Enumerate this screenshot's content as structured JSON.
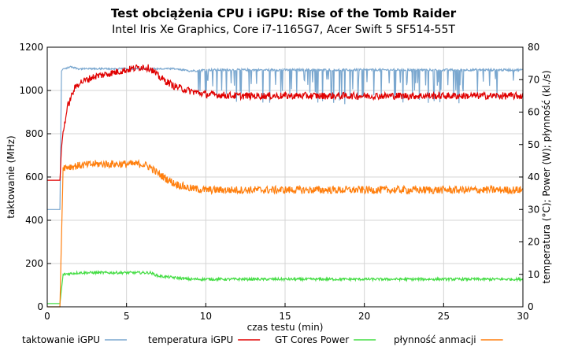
{
  "chart_data": {
    "type": "line",
    "title": "Test obciążenia CPU i iGPU: Rise of the Tomb Raider",
    "subtitle": "Intel Iris Xe Graphics, Core i7-1165G7, Acer Swift 5 SF514-55T",
    "xlabel": "czas testu (min)",
    "ylabel_left": "taktowanie (MHz)",
    "ylabel_right": "temperatura (°C); Power (W); płynność (kl./s)",
    "xlim": [
      0,
      30
    ],
    "ylim_left": [
      0,
      1200
    ],
    "ylim_right": [
      0,
      80
    ],
    "x_ticks": [
      0,
      5,
      10,
      15,
      20,
      25,
      30
    ],
    "y_ticks_left": [
      0,
      200,
      400,
      600,
      800,
      1000,
      1200
    ],
    "y_ticks_right": [
      0,
      10,
      20,
      30,
      40,
      50,
      60,
      70,
      80
    ],
    "grid": true,
    "legend_position": "bottom",
    "series": [
      {
        "name": "taktowanie iGPU",
        "axis": "left",
        "color": "#7aa7cf",
        "x": [
          0,
          0.8,
          0.9,
          1.0,
          1.1,
          1.5,
          2,
          3,
          4,
          5,
          6,
          7,
          8,
          8.5,
          9,
          10,
          12,
          15,
          20,
          25,
          30
        ],
        "y": [
          450,
          450,
          1090,
          1100,
          1100,
          1110,
          1100,
          1100,
          1100,
          1100,
          1100,
          1100,
          1100,
          1095,
          1090,
          1095,
          1095,
          1095,
          1095,
          1095,
          1095
        ]
      },
      {
        "name": "temperatura iGPU",
        "axis": "right",
        "color": "#e00000",
        "x": [
          0,
          0.8,
          0.9,
          1.0,
          1.3,
          1.7,
          2,
          3,
          4,
          5,
          6,
          6.5,
          7,
          8,
          9,
          10,
          12,
          15,
          20,
          25,
          30
        ],
        "y": [
          39,
          39,
          49,
          54,
          62,
          67,
          69,
          71,
          72,
          73,
          74,
          73.5,
          71,
          68,
          66.5,
          65.5,
          65,
          65,
          65,
          65,
          65
        ]
      },
      {
        "name": "GT Cores Power",
        "axis": "right",
        "color": "#44dd44",
        "x": [
          0,
          0.8,
          1.0,
          2,
          3,
          4,
          5,
          6,
          6.5,
          7,
          8,
          9,
          10,
          15,
          20,
          25,
          30
        ],
        "y": [
          1,
          1,
          10,
          10.5,
          10.5,
          10.5,
          10.5,
          10.5,
          10.5,
          9.5,
          9,
          8.5,
          8.5,
          8.5,
          8.5,
          8.5,
          8.5
        ]
      },
      {
        "name": "płynność anmacji",
        "axis": "right",
        "color": "#ff7f0e",
        "x": [
          0,
          0.8,
          1.0,
          2,
          3,
          4,
          5,
          6,
          6.5,
          7,
          8,
          9,
          10,
          15,
          20,
          25,
          30
        ],
        "y": [
          0,
          0,
          43,
          43.5,
          44,
          44,
          44,
          44,
          43,
          41,
          38,
          36.5,
          36,
          36,
          36,
          36,
          36
        ]
      }
    ]
  }
}
